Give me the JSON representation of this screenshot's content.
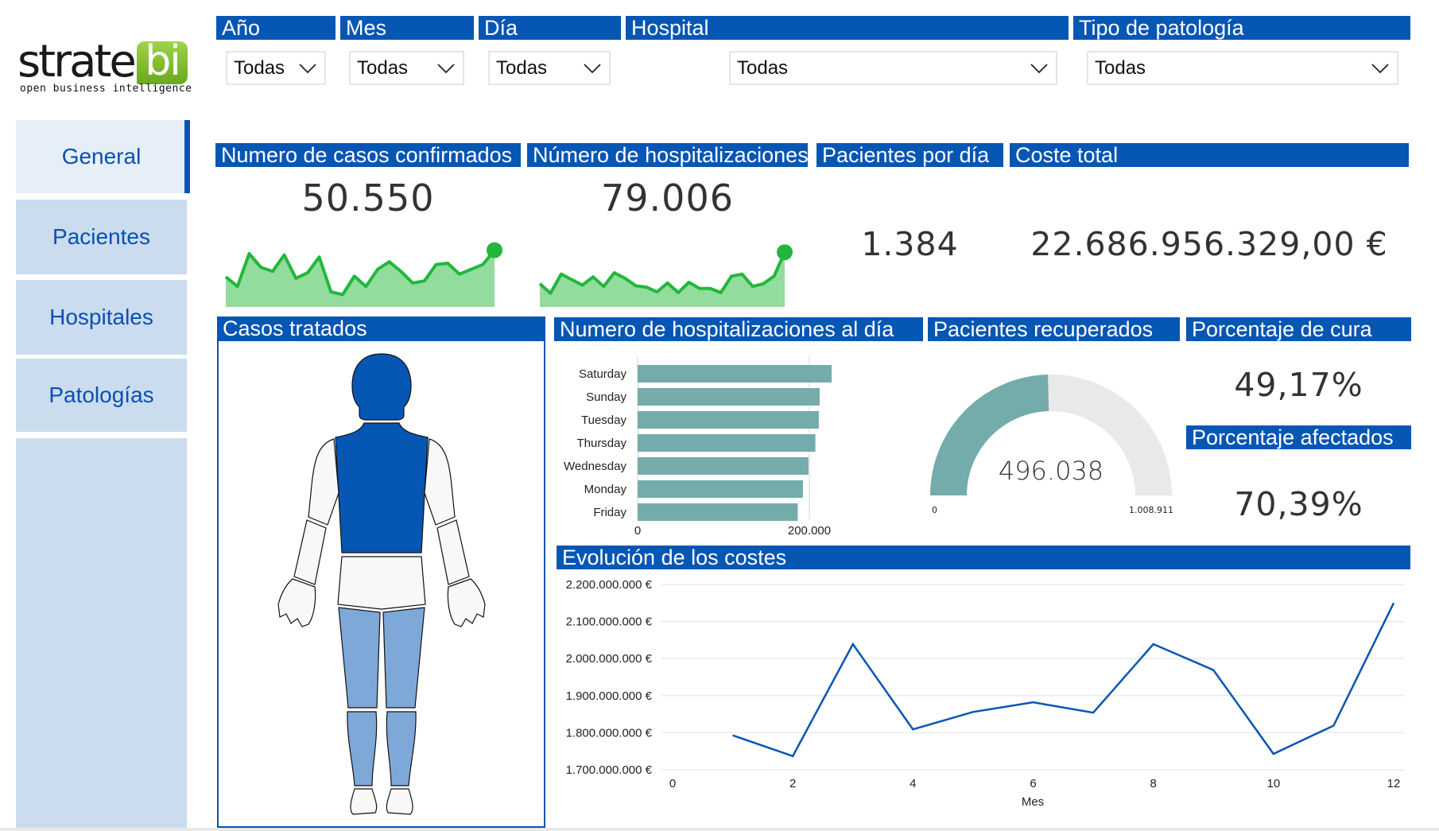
{
  "brand": {
    "name": "strate",
    "accent": "bi",
    "tagline": "open business intelligence"
  },
  "sidebar": {
    "items": [
      {
        "label": "General",
        "active": true
      },
      {
        "label": "Pacientes",
        "active": false
      },
      {
        "label": "Hospitales",
        "active": false
      },
      {
        "label": "Patologías",
        "active": false
      }
    ]
  },
  "filters": [
    {
      "label": "Año",
      "value": "Todas"
    },
    {
      "label": "Mes",
      "value": "Todas"
    },
    {
      "label": "Día",
      "value": "Todas"
    },
    {
      "label": "Hospital",
      "value": "Todas"
    },
    {
      "label": "Tipo de patología",
      "value": "Todas"
    }
  ],
  "kpis": {
    "casos": {
      "title": "Numero de casos confirmados",
      "value": "50.550"
    },
    "hospitalizaciones": {
      "title": "Número de hospitalizaciones",
      "value": "79.006"
    },
    "pacientes_dia": {
      "title": "Pacientes por día",
      "value": "1.384"
    },
    "coste": {
      "title": "Coste total",
      "value": "22.686.956.329,00 €"
    },
    "cura": {
      "title": "Porcentaje de cura",
      "value": "49,17%"
    },
    "afectados": {
      "title": "Porcentaje afectados",
      "value": "70,39%"
    }
  },
  "casos_tratados": {
    "title": "Casos tratados",
    "colors": {
      "high": "#0656b4",
      "medium": "#7ea8d8",
      "none": "#f8f8f8"
    }
  },
  "colors": {
    "header": "#0656b4",
    "spark": "#22b73c",
    "spark_fill": "#92dc9e",
    "teal": "#74abab",
    "gauge_bg": "#e9e9e9",
    "line": "#0656b4"
  },
  "chart_data": [
    {
      "id": "spark_casos",
      "type": "area",
      "title": "Numero de casos confirmados (tendencia)",
      "values": [
        44,
        30,
        78,
        58,
        52,
        76,
        42,
        50,
        73,
        22,
        18,
        45,
        30,
        55,
        66,
        52,
        35,
        38,
        62,
        64,
        48,
        55,
        62,
        83
      ]
    },
    {
      "id": "spark_hosp",
      "type": "area",
      "title": "Número de hospitalizaciones (tendencia)",
      "values": [
        34,
        20,
        48,
        40,
        32,
        44,
        30,
        50,
        42,
        31,
        29,
        22,
        35,
        21,
        36,
        27,
        27,
        21,
        45,
        48,
        30,
        34,
        45,
        80
      ]
    },
    {
      "id": "bar_dias",
      "type": "bar",
      "orientation": "horizontal",
      "title": "Numero de hospitalizaciones al día",
      "categories": [
        "Saturday",
        "Sunday",
        "Tuesday",
        "Thursday",
        "Wednesday",
        "Monday",
        "Friday"
      ],
      "values": [
        226000,
        212000,
        211000,
        207000,
        199000,
        192500,
        186500
      ],
      "xlim": [
        0,
        200000
      ],
      "xticks": [
        0,
        200000
      ],
      "xtick_labels": [
        "0",
        "200.000"
      ]
    },
    {
      "id": "gauge_recuperados",
      "type": "gauge",
      "title": "Pacientes recuperados",
      "value": 496038,
      "value_label": "496.038",
      "min": 0,
      "max": 1008911,
      "min_label": "0",
      "max_label": "1.008.911"
    },
    {
      "id": "line_costes",
      "type": "line",
      "title": "Evolución de los costes",
      "xlabel": "Mes",
      "ylabel": "",
      "x": [
        1,
        2,
        3,
        4,
        5,
        6,
        7,
        8,
        9,
        10,
        11,
        12
      ],
      "values": [
        1793000000,
        1737000000,
        2039000000,
        1809000000,
        1856000000,
        1882000000,
        1854000000,
        2039000000,
        1969000000,
        1743000000,
        1819000000,
        2150000000
      ],
      "xlim": [
        0,
        12
      ],
      "ylim": [
        1700000000,
        2200000000
      ],
      "xticks": [
        0,
        2,
        4,
        6,
        8,
        10,
        12
      ],
      "yticks": [
        1700000000,
        1800000000,
        1900000000,
        2000000000,
        2100000000,
        2200000000
      ],
      "ytick_labels": [
        "1.700.000.000 €",
        "1.800.000.000 €",
        "1.900.000.000 €",
        "2.000.000.000 €",
        "2.100.000.000 €",
        "2.200.000.000 €"
      ],
      "grid": true
    }
  ]
}
